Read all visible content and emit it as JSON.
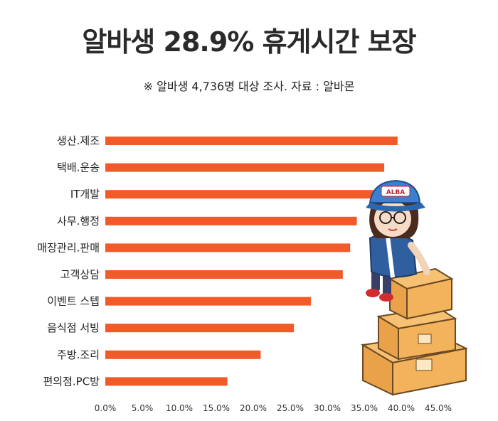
{
  "header": {
    "title": "알바생 28.9% 휴게시간 보장",
    "subtitle": "※ 알바생 4,736명 대상 조사. 자료 : 알바몬"
  },
  "colors": {
    "bar": "#F25A2A",
    "text": "#222222"
  },
  "illustration": {
    "badge_text": "ALBA"
  },
  "chart_data": {
    "type": "bar",
    "orientation": "horizontal",
    "title": "",
    "xlabel": "",
    "ylabel": "",
    "categories": [
      "생산.제조",
      "택배.운송",
      "IT개발",
      "사무.행정",
      "매장관리.판매",
      "고객상담",
      "이벤트 스텝",
      "음식점 서빙",
      "주방.조리",
      "편의점.PC방"
    ],
    "values": [
      39.5,
      37.7,
      36.8,
      34.0,
      33.1,
      32.1,
      27.8,
      25.5,
      21.0,
      16.5
    ],
    "xlim": [
      0,
      45
    ],
    "ticks": [
      0,
      5,
      10,
      15,
      20,
      25,
      30,
      35,
      40,
      45
    ],
    "tick_labels": [
      "0.0%",
      "5.0%",
      "10.0%",
      "15.0%",
      "20.0%",
      "25.0%",
      "30.0%",
      "35.0%",
      "40.0%",
      "45.0%"
    ],
    "grid": false,
    "legend": "none"
  }
}
